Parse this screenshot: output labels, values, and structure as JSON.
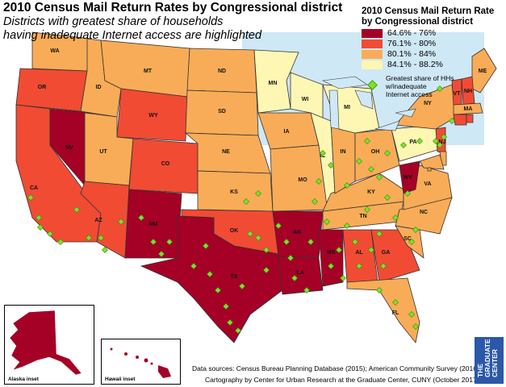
{
  "title": "2010 Census Mail Return Rates by Congressional district",
  "subtitle_line1": "Districts with greatest share of households",
  "subtitle_line2": "having inadequate Internet access are highlighted",
  "legend": {
    "title_line1": "2010 Census Mail Return Rate",
    "title_line2": "by Congressional district",
    "classes": [
      {
        "label": "64.6% - 76%",
        "color": "#a50026"
      },
      {
        "label": "76.1% - 80%",
        "color": "#f14b34"
      },
      {
        "label": "80.1% - 84%",
        "color": "#f9ac57"
      },
      {
        "label": "84.1% - 88.2%",
        "color": "#fdf7b3"
      }
    ],
    "marker_line1": "Greatest share of HHs",
    "marker_line2": "w/inadequate",
    "marker_line3": "Internet access",
    "marker_color": "#7be32a"
  },
  "states": [
    {
      "abbr": "WA",
      "level": 3
    },
    {
      "abbr": "OR",
      "level": 2
    },
    {
      "abbr": "CA",
      "level": 2
    },
    {
      "abbr": "NV",
      "level": 1
    },
    {
      "abbr": "ID",
      "level": 3
    },
    {
      "abbr": "MT",
      "level": 3
    },
    {
      "abbr": "WY",
      "level": 2
    },
    {
      "abbr": "UT",
      "level": 3
    },
    {
      "abbr": "AZ",
      "level": 2
    },
    {
      "abbr": "CO",
      "level": 2
    },
    {
      "abbr": "NM",
      "level": 1
    },
    {
      "abbr": "ND",
      "level": 3
    },
    {
      "abbr": "SD",
      "level": 3
    },
    {
      "abbr": "NE",
      "level": 3
    },
    {
      "abbr": "KS",
      "level": 3
    },
    {
      "abbr": "OK",
      "level": 2
    },
    {
      "abbr": "TX",
      "level": 1
    },
    {
      "abbr": "MN",
      "level": 4
    },
    {
      "abbr": "IA",
      "level": 3
    },
    {
      "abbr": "MO",
      "level": 3
    },
    {
      "abbr": "AR",
      "level": 1
    },
    {
      "abbr": "LA",
      "level": 1
    },
    {
      "abbr": "WI",
      "level": 4
    },
    {
      "abbr": "IL",
      "level": 4
    },
    {
      "abbr": "MS",
      "level": 1
    },
    {
      "abbr": "AL",
      "level": 2
    },
    {
      "abbr": "TN",
      "level": 3
    },
    {
      "abbr": "KY",
      "level": 3
    },
    {
      "abbr": "IN",
      "level": 3
    },
    {
      "abbr": "MI",
      "level": 4
    },
    {
      "abbr": "OH",
      "level": 3
    },
    {
      "abbr": "GA",
      "level": 2
    },
    {
      "abbr": "FL",
      "level": 3
    },
    {
      "abbr": "SC",
      "level": 3
    },
    {
      "abbr": "NC",
      "level": 3
    },
    {
      "abbr": "VA",
      "level": 3
    },
    {
      "abbr": "WV",
      "level": 1
    },
    {
      "abbr": "PA",
      "level": 4
    },
    {
      "abbr": "NY",
      "level": 3
    },
    {
      "abbr": "NJ",
      "level": 2
    },
    {
      "abbr": "ME",
      "level": 3
    },
    {
      "abbr": "VT",
      "level": 2
    },
    {
      "abbr": "NH",
      "level": 2
    },
    {
      "abbr": "MA",
      "level": 3
    },
    {
      "abbr": "CT",
      "level": 2
    },
    {
      "abbr": "RI",
      "level": 2
    },
    {
      "abbr": "DE",
      "level": 3
    },
    {
      "abbr": "MD",
      "level": 3
    },
    {
      "abbr": "DC",
      "level": 3
    }
  ],
  "insets": {
    "alaska": "Alaska inset",
    "hawaii": "Hawaii inset"
  },
  "sources": {
    "line1": "Data sources: Census Bureau Planning Database (2015); American Community Survey (2016).",
    "line2": "Cartography by Center for Urban Research at the Graduate Center, CUNY (October 2017)."
  },
  "logo": {
    "line1": "THE",
    "line2": "GRADUATE",
    "line3": "CENTER",
    "color": "#2b58a8"
  }
}
